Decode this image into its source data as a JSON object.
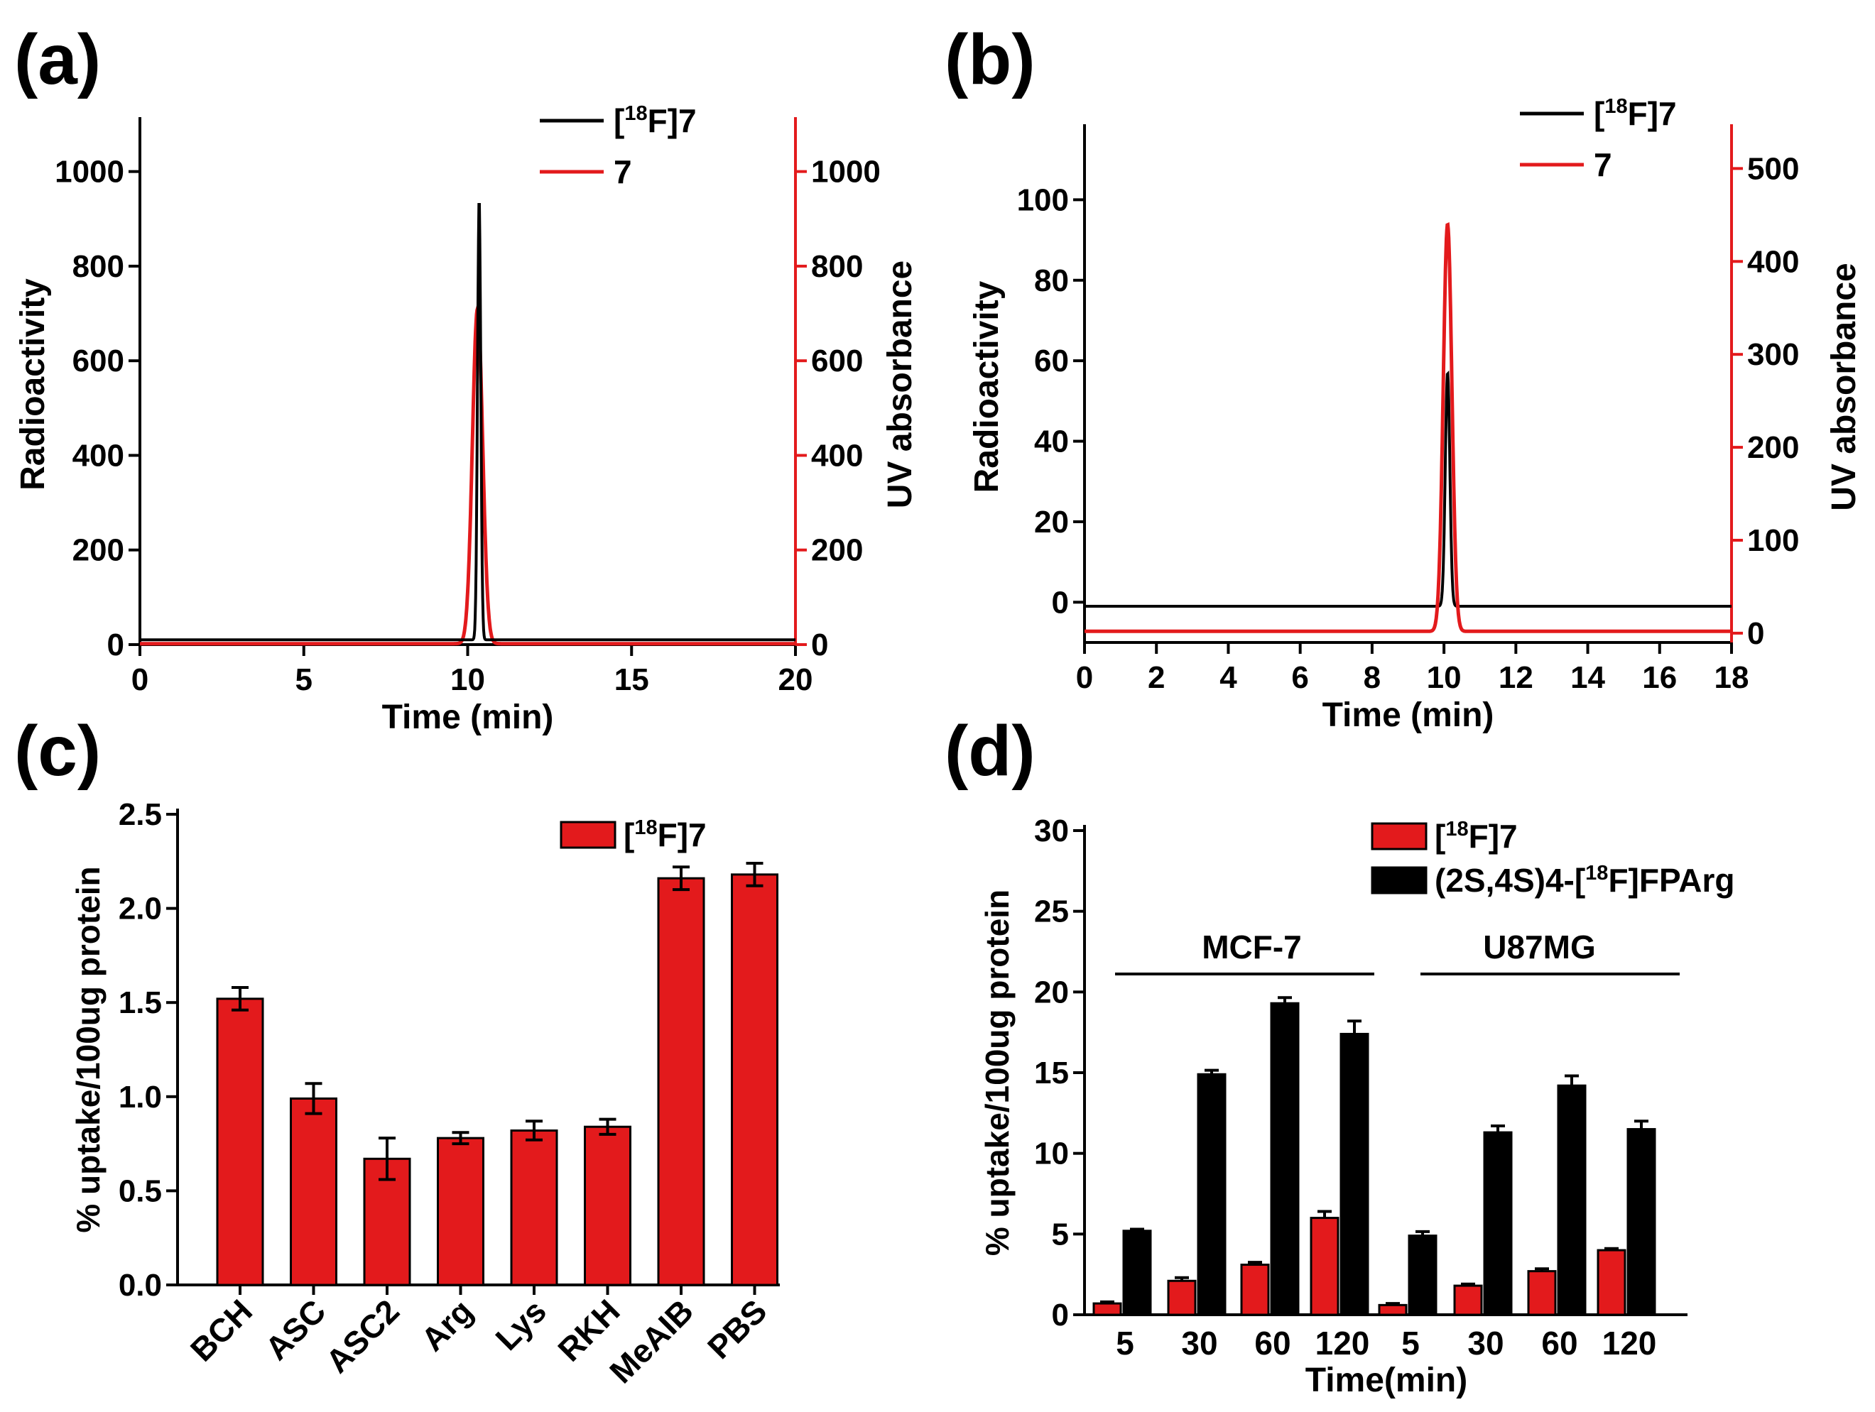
{
  "colors": {
    "black": "#000000",
    "red": "#e31a1c"
  },
  "chart_data": [
    {
      "panel": "(a)",
      "type": "line",
      "xlabel": "Time (min)",
      "ylabel": "Radioactivity",
      "ylabel_right": "UV absorbance",
      "xlim": [
        0,
        20
      ],
      "ylim": [
        0,
        1100
      ],
      "ylim_right": [
        0,
        1100
      ],
      "xticks": [
        0,
        5,
        10,
        15,
        20
      ],
      "yticks": [
        0,
        200,
        400,
        600,
        800,
        1000
      ],
      "yticks_right": [
        0,
        200,
        400,
        600,
        800,
        1000
      ],
      "legend_position": "top-right",
      "grid": false,
      "series": [
        {
          "name": "[18F]7",
          "label_parts": [
            "[",
            "18",
            "F]7"
          ],
          "color": "#000000",
          "axis": "left",
          "baseline": 10,
          "peak_x": 10.35,
          "peak_y": 940,
          "width": 0.07
        },
        {
          "name": "7",
          "label_parts": [
            "7"
          ],
          "color": "#e31a1c",
          "axis": "right",
          "baseline": 2,
          "peak_x": 10.3,
          "peak_y": 710,
          "width": 0.22
        }
      ]
    },
    {
      "panel": "(b)",
      "type": "line",
      "xlabel": "Time (min)",
      "ylabel": "Radioactivity",
      "ylabel_right": "UV absorbance",
      "xlim": [
        0,
        18
      ],
      "ylim": [
        -10,
        117
      ],
      "ylim_right": [
        -10,
        540
      ],
      "xticks": [
        0,
        2,
        4,
        6,
        8,
        10,
        12,
        14,
        16,
        18
      ],
      "yticks": [
        0,
        20,
        40,
        60,
        80,
        100
      ],
      "yticks_right": [
        0,
        100,
        200,
        300,
        400,
        500
      ],
      "legend_position": "top-right",
      "grid": false,
      "series": [
        {
          "name": "[18F]7",
          "label_parts": [
            "[",
            "18",
            "F]7"
          ],
          "color": "#000000",
          "axis": "left",
          "baseline": -1,
          "peak_x": 10.1,
          "peak_y": 57,
          "width": 0.09
        },
        {
          "name": "7",
          "label_parts": [
            "7"
          ],
          "color": "#e31a1c",
          "axis": "right",
          "baseline": 2,
          "peak_x": 10.1,
          "peak_y": 440,
          "width": 0.17
        }
      ]
    },
    {
      "panel": "(c)",
      "type": "bar",
      "ylabel": "% uptake/100ug protein",
      "xlabel": "",
      "ylim": [
        0,
        2.5
      ],
      "yticks": [
        0.0,
        0.5,
        1.0,
        1.5,
        2.0,
        2.5
      ],
      "ytick_labels": [
        "0.0",
        "0.5",
        "1.0",
        "1.5",
        "2.0",
        "2.5"
      ],
      "categories": [
        "BCH",
        "ASC",
        "ASC2",
        "Arg",
        "Lys",
        "RKH",
        "MeAIB",
        "PBS"
      ],
      "legend_position": "top-right",
      "grid": false,
      "series": [
        {
          "name": "[18F]7",
          "label_parts": [
            "[",
            "18",
            "F]7"
          ],
          "color": "#e31a1c",
          "values": [
            1.52,
            0.99,
            0.67,
            0.78,
            0.82,
            0.84,
            2.16,
            2.18
          ],
          "errors": [
            0.06,
            0.08,
            0.11,
            0.03,
            0.05,
            0.04,
            0.06,
            0.06
          ]
        }
      ]
    },
    {
      "panel": "(d)",
      "type": "bar",
      "ylabel": "% uptake/100ug protein",
      "xlabel": "Time(min)",
      "ylim": [
        0,
        30
      ],
      "yticks": [
        0,
        5,
        10,
        15,
        20,
        25,
        30
      ],
      "categories": [
        "5",
        "30",
        "60",
        "120",
        "5",
        "30",
        "60",
        "120"
      ],
      "groups": [
        {
          "label": "MCF-7",
          "from": 0,
          "to": 3
        },
        {
          "label": "U87MG",
          "from": 4,
          "to": 7
        }
      ],
      "legend_position": "top-right",
      "grid": false,
      "series": [
        {
          "name": "[18F]7",
          "label_parts": [
            "[",
            "18",
            "F]7"
          ],
          "color": "#e31a1c",
          "values": [
            0.7,
            2.1,
            3.1,
            6.0,
            0.6,
            1.8,
            2.7,
            4.0
          ],
          "errors": [
            0.1,
            0.2,
            0.15,
            0.4,
            0.1,
            0.1,
            0.15,
            0.1
          ]
        },
        {
          "name": "(2S,4S)4-[18F]FPArg",
          "label_parts": [
            "(2S,4S)4-[",
            "18",
            "F]FPArg"
          ],
          "color": "#000000",
          "values": [
            5.2,
            14.9,
            19.3,
            17.4,
            4.9,
            11.3,
            14.2,
            11.5
          ],
          "errors": [
            0.1,
            0.25,
            0.35,
            0.8,
            0.25,
            0.4,
            0.6,
            0.5
          ]
        }
      ]
    }
  ]
}
